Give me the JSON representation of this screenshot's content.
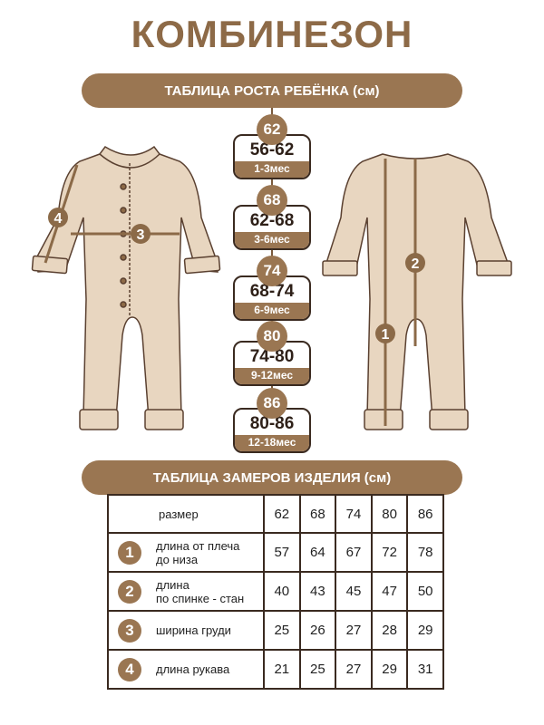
{
  "title": "КОМБИНЕЗОН",
  "growth_table_title": "ТАБЛИЦА РОСТА РЕБЁНКА (см)",
  "measure_table_title": "ТАБЛИЦА ЗАМЕРОВ ИЗДЕЛИЯ (см)",
  "sizes": [
    {
      "size": "62",
      "range": "56-62",
      "age": "1-3мес"
    },
    {
      "size": "68",
      "range": "62-68",
      "age": "3-6мес"
    },
    {
      "size": "74",
      "range": "68-74",
      "age": "6-9мес"
    },
    {
      "size": "80",
      "range": "74-80",
      "age": "9-12мес"
    },
    {
      "size": "86",
      "range": "80-86",
      "age": "12-18мес"
    }
  ],
  "front_markers": [
    "4",
    "3"
  ],
  "back_markers": [
    "2",
    "1"
  ],
  "table": {
    "header": {
      "label": "размер",
      "values": [
        "62",
        "68",
        "74",
        "80",
        "86"
      ]
    },
    "rows": [
      {
        "num": "1",
        "label1": "длина от плеча",
        "label2": "до низа",
        "values": [
          "57",
          "64",
          "67",
          "72",
          "78"
        ]
      },
      {
        "num": "2",
        "label1": "длина",
        "label2": "по спинке - стан",
        "values": [
          "40",
          "43",
          "45",
          "47",
          "50"
        ]
      },
      {
        "num": "3",
        "label1": "ширина груди",
        "label2": "",
        "values": [
          "25",
          "26",
          "27",
          "28",
          "29"
        ]
      },
      {
        "num": "4",
        "label1": "длина рукава",
        "label2": "",
        "values": [
          "21",
          "25",
          "27",
          "29",
          "31"
        ]
      }
    ]
  },
  "colors": {
    "accent": "#9a7652",
    "garment": "#e8d6c0",
    "outline": "#5a4030"
  }
}
